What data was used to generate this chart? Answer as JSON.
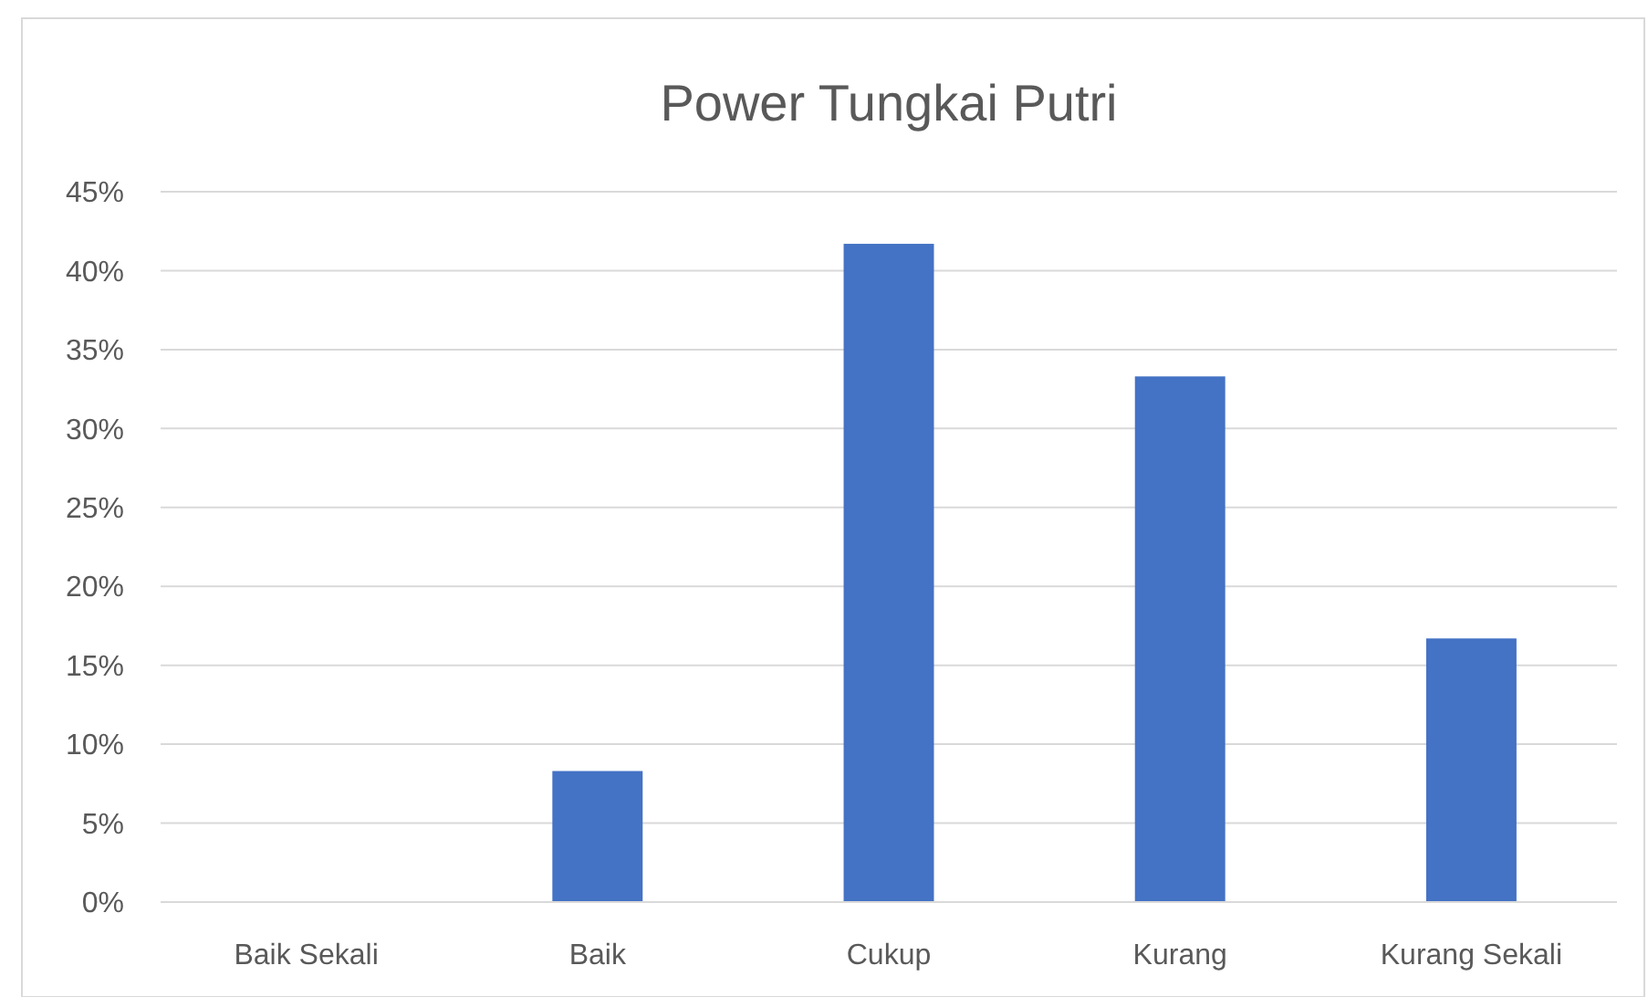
{
  "chart_data": {
    "type": "bar",
    "title": "Power Tungkai Putri",
    "categories": [
      "Baik Sekali",
      "Baik",
      "Cukup",
      "Kurang",
      "Kurang Sekali"
    ],
    "values": [
      0,
      8.3,
      41.7,
      33.3,
      16.7
    ],
    "color": "#4472c4",
    "ylim": [
      0,
      45
    ],
    "yticks": [
      {
        "value": 0,
        "label": "0%"
      },
      {
        "value": 5,
        "label": "5%"
      },
      {
        "value": 10,
        "label": "10%"
      },
      {
        "value": 15,
        "label": "15%"
      },
      {
        "value": 20,
        "label": "20%"
      },
      {
        "value": 25,
        "label": "25%"
      },
      {
        "value": 30,
        "label": "30%"
      },
      {
        "value": 35,
        "label": "35%"
      },
      {
        "value": 40,
        "label": "40%"
      },
      {
        "value": 45,
        "label": "45%"
      }
    ],
    "grid": "y"
  }
}
